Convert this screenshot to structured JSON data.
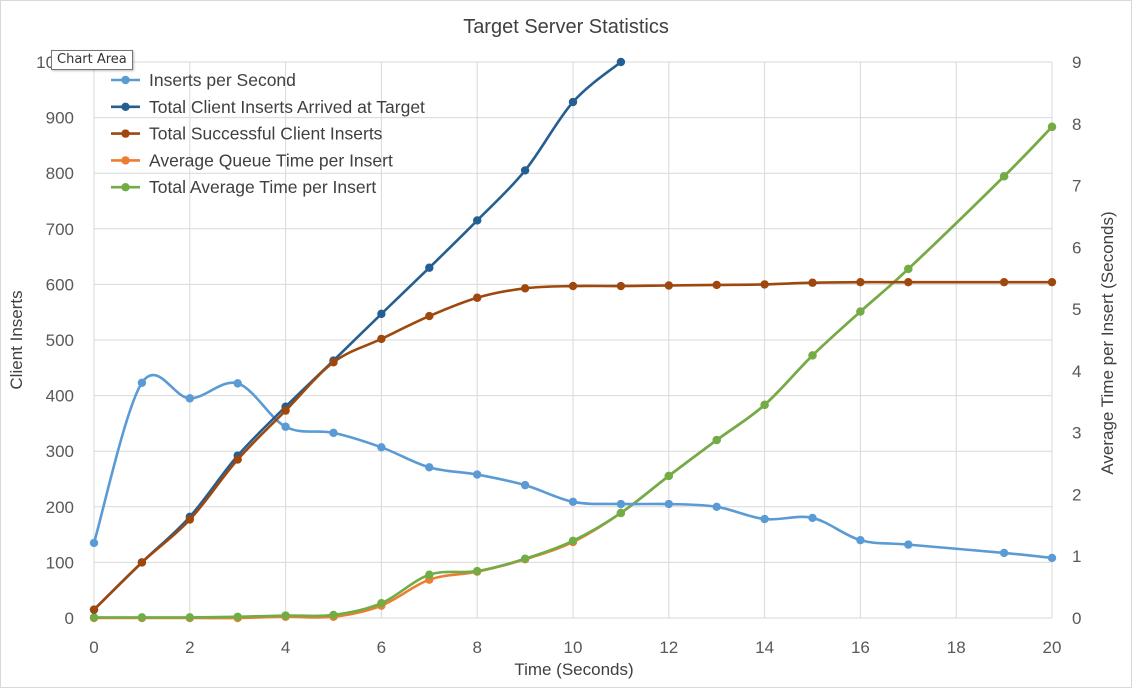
{
  "chart_data": {
    "type": "line",
    "title": "Target Server Statistics",
    "xlabel": "Time (Seconds)",
    "ylabel": "Client Inserts",
    "y2label": "Average Time per Insert (Seconds)",
    "xlim": [
      0,
      20
    ],
    "ylim": [
      0,
      1000
    ],
    "y2lim": [
      0,
      9
    ],
    "xticks": [
      0,
      2,
      4,
      6,
      8,
      10,
      12,
      14,
      16,
      18,
      20
    ],
    "yticks": [
      0,
      100,
      200,
      300,
      400,
      500,
      600,
      700,
      800,
      900,
      1000
    ],
    "y2ticks": [
      0,
      1,
      2,
      3,
      4,
      5,
      6,
      7,
      8,
      9
    ],
    "grid": true,
    "legend_position": "top-left",
    "series": [
      {
        "name": "Inserts per Second",
        "color": "#5b9bd5",
        "axis": "left",
        "x": [
          0,
          1,
          2,
          3,
          4,
          5,
          6,
          7,
          8,
          9,
          10,
          11,
          12,
          13,
          14,
          15,
          16,
          17,
          19,
          20
        ],
        "y": [
          135,
          423,
          395,
          422,
          344,
          333,
          307,
          271,
          258,
          239,
          209,
          205,
          205,
          200,
          178,
          180,
          140,
          132,
          117,
          108
        ]
      },
      {
        "name": "Total Client Inserts Arrived at Target",
        "color": "#255e91",
        "axis": "left",
        "x": [
          0,
          1,
          2,
          3,
          4,
          5,
          6,
          7,
          8,
          9,
          10,
          11
        ],
        "y": [
          15,
          100,
          182,
          292,
          380,
          463,
          547,
          630,
          715,
          805,
          928,
          1000
        ]
      },
      {
        "name": "Total Successful Client Inserts",
        "color": "#9e480e",
        "axis": "left",
        "x": [
          0,
          1,
          2,
          3,
          4,
          5,
          6,
          7,
          8,
          9,
          10,
          11,
          12,
          13,
          14,
          15,
          16,
          17,
          19,
          20
        ],
        "y": [
          15,
          100,
          177,
          285,
          373,
          460,
          502,
          543,
          576,
          593,
          597,
          597,
          598,
          599,
          600,
          603,
          604,
          604,
          604,
          604
        ]
      },
      {
        "name": "Average Queue Time per Insert",
        "color": "#ed7d31",
        "axis": "right",
        "x": [
          0,
          1,
          2,
          3,
          4,
          5,
          6,
          7,
          8,
          9,
          10,
          11,
          12,
          13,
          14,
          15,
          16,
          17,
          19,
          20
        ],
        "y": [
          0,
          0,
          0,
          0,
          0.02,
          0.02,
          0.2,
          0.62,
          0.75,
          0.95,
          1.23,
          1.7,
          2.3,
          2.88,
          3.45,
          4.25,
          4.96,
          5.65,
          7.15,
          7.95
        ]
      },
      {
        "name": "Total Average Time per Insert",
        "color": "#70ad47",
        "axis": "right",
        "x": [
          0,
          1,
          2,
          3,
          4,
          5,
          6,
          7,
          8,
          9,
          10,
          11,
          12,
          13,
          14,
          15,
          16,
          17,
          19,
          20
        ],
        "y": [
          0.01,
          0.01,
          0.01,
          0.02,
          0.04,
          0.05,
          0.24,
          0.7,
          0.76,
          0.96,
          1.25,
          1.7,
          2.3,
          2.88,
          3.45,
          4.25,
          4.96,
          5.65,
          7.15,
          7.95
        ]
      }
    ]
  },
  "tooltip": "Chart Area"
}
